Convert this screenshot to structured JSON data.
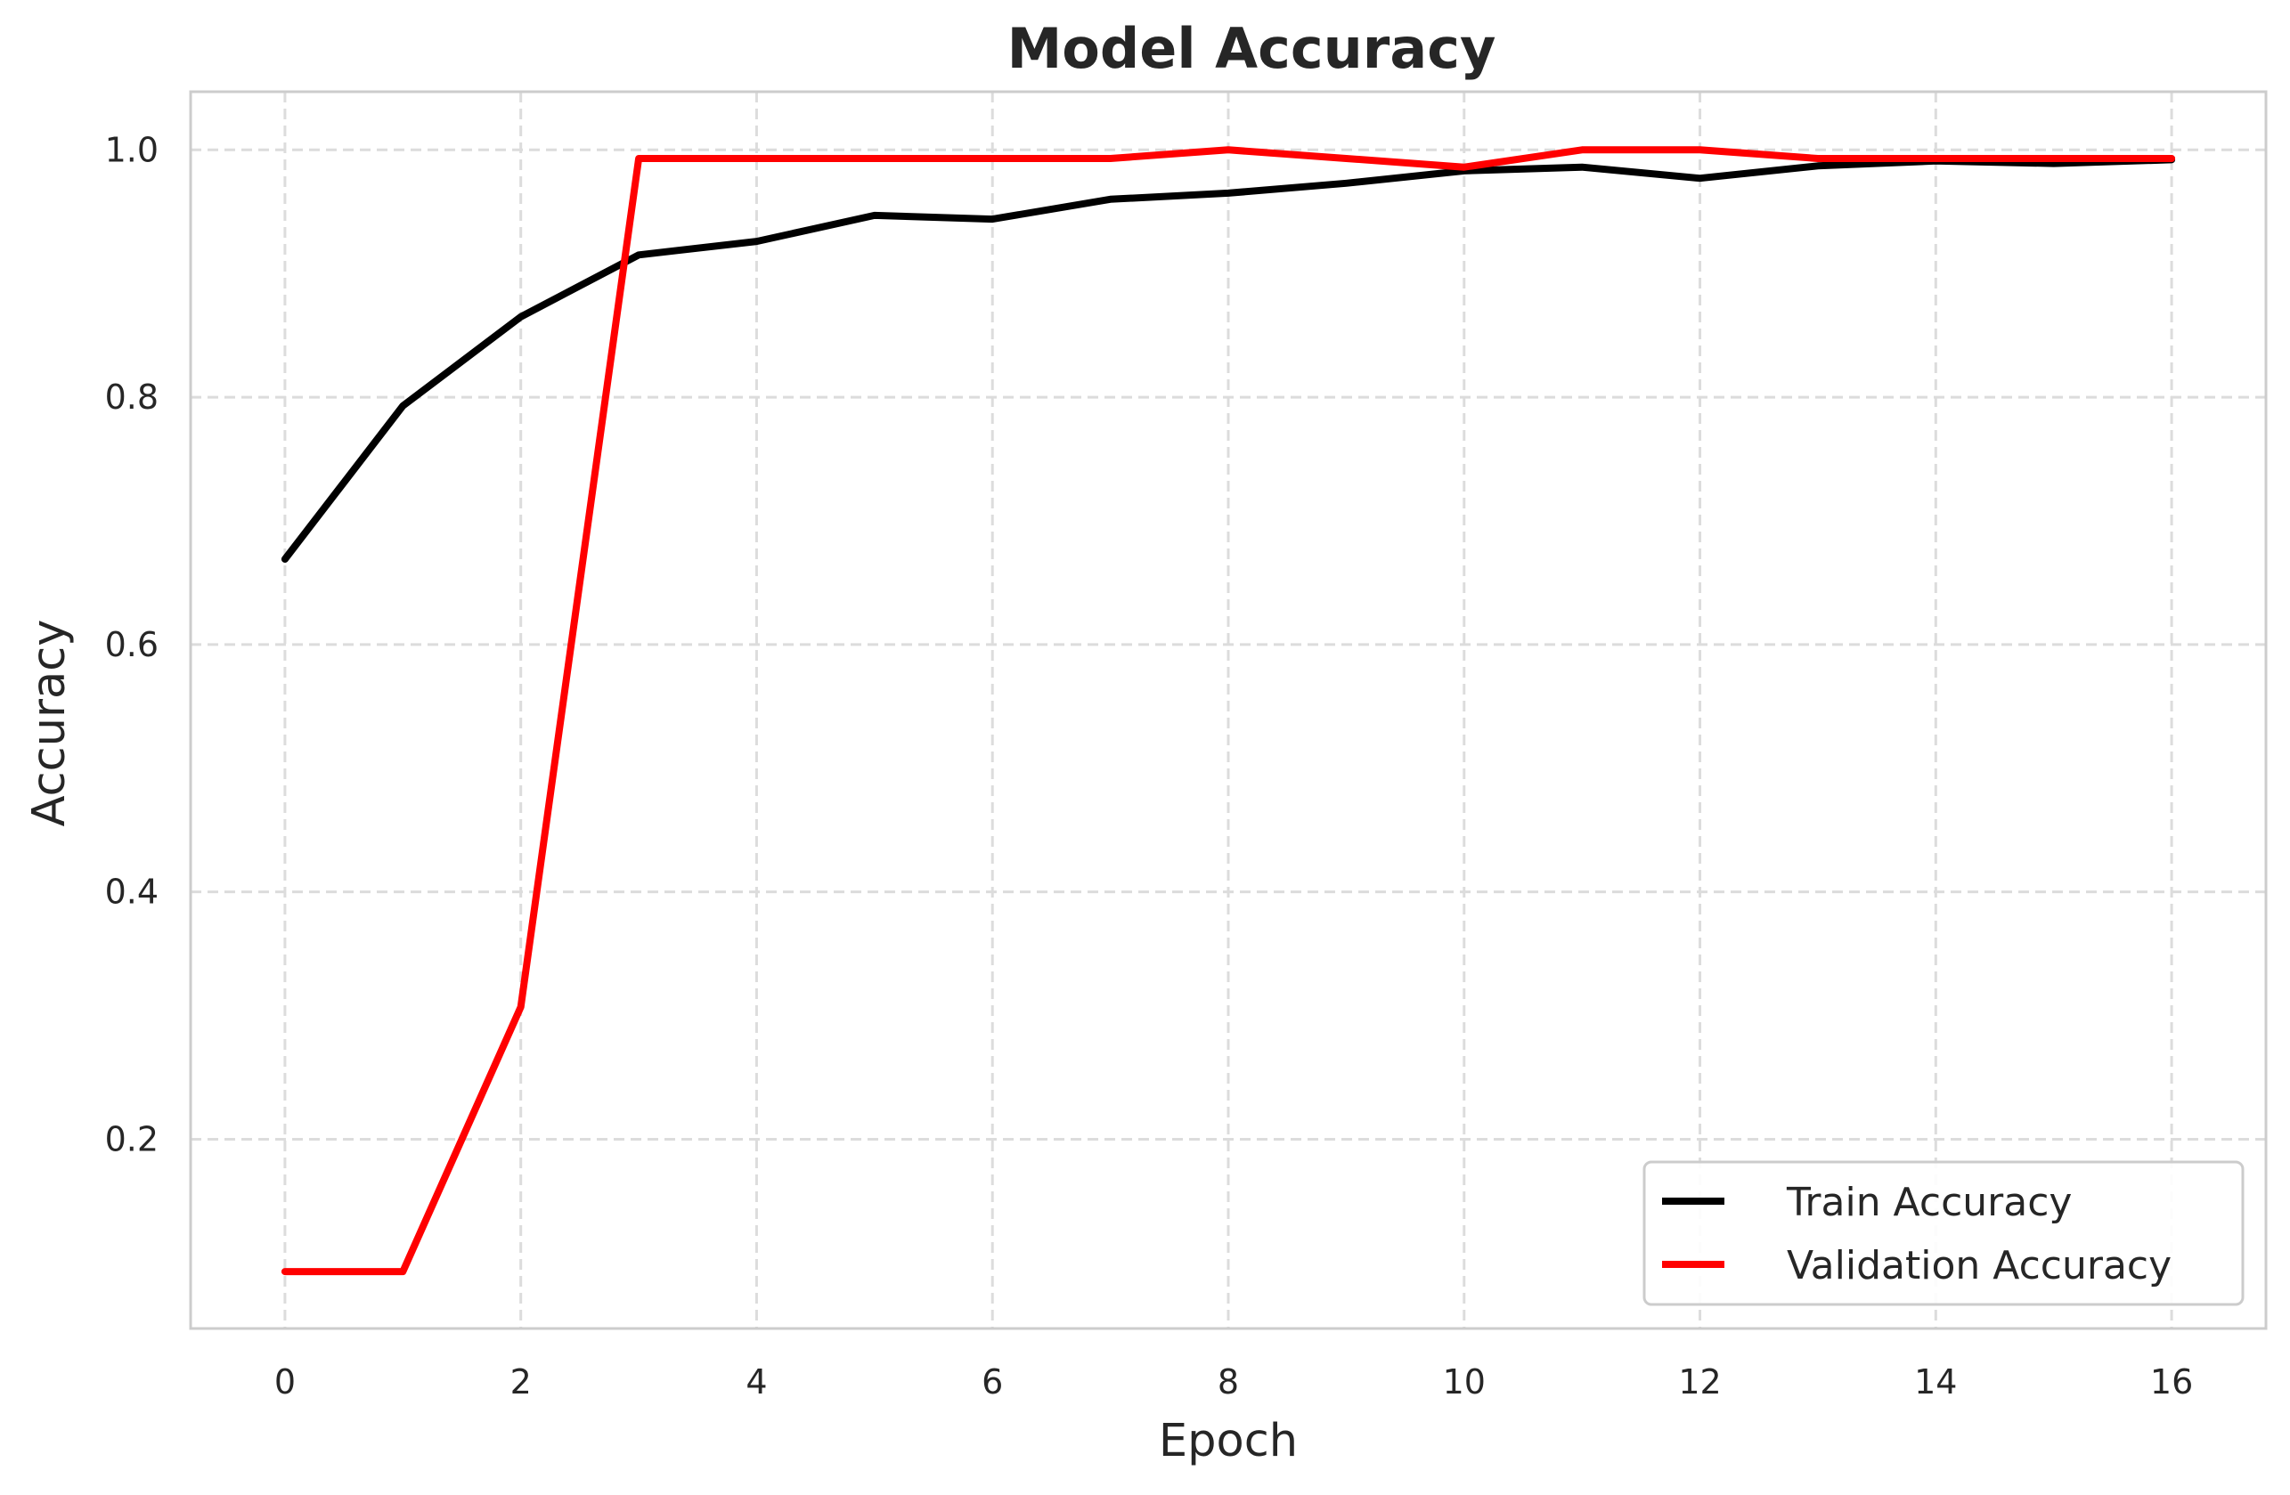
{
  "chart_data": {
    "type": "line",
    "title": "Model Accuracy",
    "xlabel": "Epoch",
    "ylabel": "Accuracy",
    "x": [
      0,
      1,
      2,
      3,
      4,
      5,
      6,
      7,
      8,
      9,
      10,
      11,
      12,
      13,
      14,
      15,
      16
    ],
    "series": [
      {
        "name": "Train Accuracy",
        "color": "#000000",
        "values": [
          0.669,
          0.793,
          0.865,
          0.915,
          0.926,
          0.947,
          0.944,
          0.96,
          0.965,
          0.973,
          0.983,
          0.986,
          0.977,
          0.987,
          0.991,
          0.989,
          0.992
        ]
      },
      {
        "name": "Validation Accuracy",
        "color": "#ff0000",
        "values": [
          0.093,
          0.093,
          0.307,
          0.993,
          0.993,
          0.993,
          0.993,
          0.993,
          1.0,
          0.993,
          0.986,
          1.0,
          1.0,
          0.993,
          0.993,
          0.993,
          0.993
        ]
      }
    ],
    "xticks": [
      0,
      2,
      4,
      6,
      8,
      10,
      12,
      14,
      16
    ],
    "xtick_labels": [
      "0",
      "2",
      "4",
      "6",
      "8",
      "10",
      "12",
      "14",
      "16"
    ],
    "yticks": [
      0.2,
      0.4,
      0.6,
      0.8,
      1.0
    ],
    "ytick_labels": [
      "0.2",
      "0.4",
      "0.6",
      "0.8",
      "1.0"
    ],
    "xlim": [
      -0.8,
      16.8
    ],
    "ylim": [
      0.047,
      1.047
    ],
    "grid": true,
    "legend": "lower-right"
  }
}
